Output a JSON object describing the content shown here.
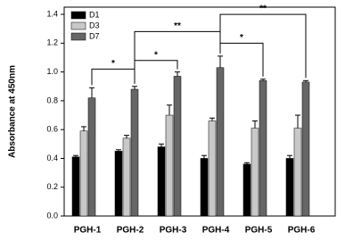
{
  "chart_data": {
    "type": "bar",
    "y_label": "Absorbance at 450nm",
    "categories": [
      "PGH-1",
      "PGH-2",
      "PGH-3",
      "PGH-4",
      "PGH-5",
      "PGH-6"
    ],
    "series": [
      {
        "name": "D1",
        "color": "#000000",
        "values": [
          0.41,
          0.45,
          0.48,
          0.4,
          0.36,
          0.4
        ],
        "errors": [
          0.01,
          0.01,
          0.02,
          0.02,
          0.01,
          0.02
        ]
      },
      {
        "name": "D3",
        "color": "#c8c8c8",
        "values": [
          0.59,
          0.54,
          0.7,
          0.66,
          0.61,
          0.61
        ],
        "errors": [
          0.03,
          0.02,
          0.07,
          0.02,
          0.05,
          0.09
        ]
      },
      {
        "name": "D7",
        "color": "#666666",
        "values": [
          0.82,
          0.88,
          0.97,
          1.03,
          0.94,
          0.93
        ],
        "errors": [
          0.07,
          0.02,
          0.03,
          0.08,
          0.01,
          0.01
        ]
      }
    ],
    "ylim": [
      0,
      1.45
    ],
    "yticks": [
      {
        "value": 0,
        "label": "0.0"
      },
      {
        "value": 0.2,
        "label": "0.2"
      },
      {
        "value": 0.4,
        "label": "0.4"
      },
      {
        "value": 0.6,
        "label": "0.6"
      },
      {
        "value": 0.8,
        "label": "0.8"
      },
      {
        "value": 1.0,
        "label": "1.0"
      },
      {
        "value": 1.2,
        "label": "1.2"
      },
      {
        "value": 1.4,
        "label": "1.4"
      }
    ],
    "legend": "upper left",
    "brackets": [
      {
        "from": 0,
        "to": 1,
        "level": 1.02,
        "label": "*"
      },
      {
        "from": 1,
        "to": 2,
        "level": 1.08,
        "label": "*"
      },
      {
        "from": 1,
        "to": 3,
        "level": 1.28,
        "label": "**"
      },
      {
        "from": 3,
        "to": 4,
        "level": 1.2,
        "label": "*"
      },
      {
        "from": 3,
        "to": 5,
        "level": 1.4,
        "label": "**"
      }
    ]
  }
}
